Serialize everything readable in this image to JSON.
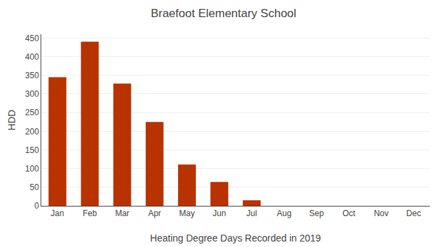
{
  "chart_data": {
    "type": "bar",
    "title": "Braefoot Elementary School",
    "xlabel": "Heating Degree Days Recorded in 2019",
    "ylabel": "HDD",
    "categories": [
      "Jan",
      "Feb",
      "Mar",
      "Apr",
      "May",
      "Jun",
      "Jul",
      "Aug",
      "Sep",
      "Oct",
      "Nov",
      "Dec"
    ],
    "values": [
      345,
      440,
      328,
      225,
      111,
      64,
      15,
      0,
      0,
      0,
      0,
      0
    ],
    "color": "#b83300",
    "ylim": [
      0,
      460
    ],
    "yticks": [
      0,
      50,
      100,
      150,
      200,
      250,
      300,
      350,
      400,
      450
    ],
    "grid": true
  }
}
